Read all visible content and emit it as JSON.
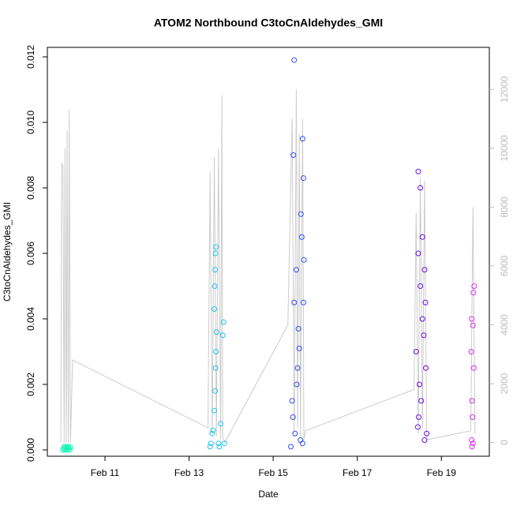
{
  "chart_data": {
    "type": "scatter",
    "title": "ATOM2 Northbound C3toCnAldehydes_GMI",
    "x_label": "Date",
    "y_label": "C3toCnAldehydes_GMI",
    "xlim": [
      9.63,
      20.14
    ],
    "xticks": [
      {
        "value": 11,
        "label": "Feb 11"
      },
      {
        "value": 13,
        "label": "Feb 13"
      },
      {
        "value": 15,
        "label": "Feb 15"
      },
      {
        "value": 17,
        "label": "Feb 17"
      },
      {
        "value": 19,
        "label": "Feb 19"
      }
    ],
    "ylim": [
      -0.000193,
      0.01229
    ],
    "yticks": [
      {
        "value": 0,
        "label": "0.000"
      },
      {
        "value": 0.002,
        "label": "0.002"
      },
      {
        "value": 0.004,
        "label": "0.004"
      },
      {
        "value": 0.006,
        "label": "0.006"
      },
      {
        "value": 0.008,
        "label": "0.008"
      },
      {
        "value": 0.01,
        "label": "0.010"
      },
      {
        "value": 0.012,
        "label": "0.012"
      }
    ],
    "y2lim": [
      -467,
      13430
    ],
    "y2ticks": [
      0,
      2000,
      4000,
      6000,
      8000,
      10000,
      12000
    ],
    "series": [
      {
        "color": "#999999",
        "axis": "y2",
        "x": [
          9.95,
          9.97,
          10.0,
          10.03,
          10.05,
          10.08,
          10.1,
          10.13,
          10.15,
          10.18,
          10.23,
          13.45,
          13.5,
          13.55,
          13.6,
          13.65,
          13.7,
          13.75,
          13.78,
          13.8,
          13.85,
          15.35,
          15.45,
          15.5,
          15.55,
          15.58,
          15.62,
          15.65,
          15.7,
          15.73,
          15.77,
          18.35,
          18.4,
          18.45,
          18.5,
          18.55,
          18.6,
          18.65,
          18.68,
          19.7,
          19.75,
          19.8
        ],
        "values": [
          0,
          9500,
          9400,
          0,
          10000,
          0,
          10600,
          0,
          11300,
          0,
          2800,
          500,
          9200,
          300,
          9700,
          200,
          10000,
          100,
          11800,
          200,
          0,
          4000,
          11000,
          300,
          12000,
          500,
          10500,
          200,
          11000,
          100,
          400,
          1800,
          7800,
          300,
          9000,
          500,
          8900,
          200,
          100,
          400,
          8000,
          300
        ]
      },
      {
        "color": "#00f5b0",
        "x": [
          10.0,
          10.02,
          10.04,
          10.06,
          10.08,
          10.1,
          10.12,
          10.14,
          10.16,
          10.18
        ],
        "values": [
          0.0,
          5e-05,
          0.0001,
          0.0,
          8e-05,
          3e-05,
          0.0001,
          5e-05,
          0.0,
          8e-05
        ]
      },
      {
        "color": "#22c4ee",
        "x": [
          13.5,
          13.52,
          13.55,
          13.57,
          13.6,
          13.62,
          13.63,
          13.64,
          13.65,
          13.6,
          13.61,
          13.62,
          13.63,
          13.64,
          13.7,
          13.72,
          13.75,
          13.8,
          13.82,
          13.84
        ],
        "values": [
          0.0001,
          0.0002,
          0.0005,
          0.0006,
          0.0012,
          0.0018,
          0.0025,
          0.003,
          0.0036,
          0.0043,
          0.005,
          0.0055,
          0.006,
          0.0062,
          0.0002,
          0.0001,
          0.0008,
          0.0035,
          0.0039,
          0.0002
        ]
      },
      {
        "color": "#2f4ef5",
        "x": [
          15.42,
          15.5,
          15.48,
          15.7,
          15.72,
          15.66,
          15.68,
          15.73,
          15.55,
          15.5,
          15.72,
          15.6,
          15.62,
          15.58,
          15.56,
          15.45,
          15.47,
          15.52,
          15.65,
          15.7
        ],
        "values": [
          0.0001,
          0.0119,
          0.009,
          0.0095,
          0.0083,
          0.0072,
          0.0065,
          0.0058,
          0.0055,
          0.0045,
          0.0045,
          0.0037,
          0.0031,
          0.0025,
          0.002,
          0.0015,
          0.001,
          0.0005,
          0.0003,
          0.0002
        ]
      },
      {
        "color": "#6a10e6",
        "x": [
          18.45,
          18.5,
          18.55,
          18.45,
          18.6,
          18.5,
          18.62,
          18.55,
          18.58,
          18.4,
          18.63,
          18.48,
          18.52,
          18.46,
          18.44,
          18.65,
          18.6
        ],
        "values": [
          0.0085,
          0.008,
          0.0065,
          0.006,
          0.0055,
          0.005,
          0.0045,
          0.004,
          0.0035,
          0.003,
          0.0025,
          0.002,
          0.0015,
          0.001,
          0.0007,
          0.0005,
          0.0003
        ]
      },
      {
        "color": "#d62cee",
        "x": [
          19.78,
          19.76,
          19.72,
          19.75,
          19.71,
          19.77,
          19.73,
          19.74,
          19.72,
          19.75,
          19.73
        ],
        "values": [
          0.005,
          0.0048,
          0.004,
          0.0038,
          0.003,
          0.0025,
          0.0015,
          0.001,
          0.0003,
          0.0002,
          0.0001
        ]
      }
    ]
  }
}
